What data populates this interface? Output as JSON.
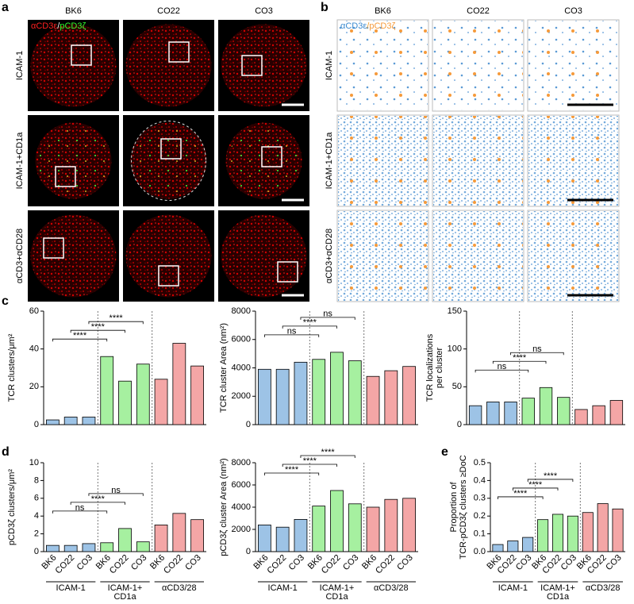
{
  "panel_labels": {
    "a": "a",
    "b": "b",
    "c": "c",
    "d": "d",
    "e": "e"
  },
  "panel_a": {
    "columns": [
      "BK6",
      "CO22",
      "CO3"
    ],
    "rows": [
      "ICAM-1",
      "ICAM-1+CD1a",
      "αCD3+αCD28"
    ],
    "legend": [
      "αCD3ε",
      "/",
      "pCD3ζ"
    ]
  },
  "panel_b": {
    "columns": [
      "BK6",
      "CO22",
      "CO3"
    ],
    "rows": [
      "ICAM-1",
      "ICAM-1+CD1a",
      "αCD3+αCD28"
    ],
    "legend": [
      "αCD3ε",
      "/",
      "pCD3ζ"
    ]
  },
  "chart_data": [
    {
      "type": "bar",
      "ylabel": [
        "TCR clusters/μm²"
      ],
      "values": [
        2.5,
        4,
        4,
        36,
        23,
        32,
        24,
        43,
        31
      ],
      "colors": [
        "#9dc3e6",
        "#9dc3e6",
        "#9dc3e6",
        "#a6f0a0",
        "#a6f0a0",
        "#a6f0a0",
        "#f4a6a6",
        "#f4a6a6",
        "#f4a6a6"
      ],
      "ylim": [
        0,
        60
      ],
      "yticks": [
        0,
        20,
        40,
        60
      ],
      "comparisons": [
        {
          "from": 0,
          "to": 3,
          "label": "****"
        },
        {
          "from": 1,
          "to": 4,
          "label": "****"
        },
        {
          "from": 2,
          "to": 5,
          "label": "****"
        }
      ]
    },
    {
      "type": "bar",
      "ylabel": [
        "TCR cluster Area (nm²)"
      ],
      "values": [
        3900,
        3900,
        4400,
        4600,
        5100,
        4500,
        3400,
        3800,
        4100
      ],
      "colors": [
        "#9dc3e6",
        "#9dc3e6",
        "#9dc3e6",
        "#a6f0a0",
        "#a6f0a0",
        "#a6f0a0",
        "#f4a6a6",
        "#f4a6a6",
        "#f4a6a6"
      ],
      "ylim": [
        0,
        8000
      ],
      "yticks": [
        0,
        2000,
        4000,
        6000,
        8000
      ],
      "comparisons": [
        {
          "from": 0,
          "to": 3,
          "label": "ns"
        },
        {
          "from": 1,
          "to": 4,
          "label": "****"
        },
        {
          "from": 2,
          "to": 5,
          "label": "ns"
        }
      ]
    },
    {
      "type": "bar",
      "ylabel": [
        "TCR localizations",
        "per cluster"
      ],
      "values": [
        25,
        30,
        30,
        35,
        49,
        36,
        20,
        25,
        32
      ],
      "colors": [
        "#9dc3e6",
        "#9dc3e6",
        "#9dc3e6",
        "#a6f0a0",
        "#a6f0a0",
        "#a6f0a0",
        "#f4a6a6",
        "#f4a6a6",
        "#f4a6a6"
      ],
      "ylim": [
        0,
        150
      ],
      "yticks": [
        0,
        50,
        100,
        150
      ],
      "comparisons": [
        {
          "from": 0,
          "to": 3,
          "label": "ns"
        },
        {
          "from": 1,
          "to": 4,
          "label": "****"
        },
        {
          "from": 2,
          "to": 5,
          "label": "ns"
        }
      ]
    },
    {
      "type": "bar",
      "ylabel": [
        "pCD3ζ clusters/μm²"
      ],
      "values": [
        0.7,
        0.7,
        0.9,
        1.0,
        2.6,
        1.1,
        3.0,
        4.3,
        3.6
      ],
      "categories": [
        "BK6",
        "CO22",
        "CO3",
        "BK6",
        "CO22",
        "CO3",
        "BK6",
        "CO22",
        "CO3"
      ],
      "group_labels": [
        [
          "ICAM-1"
        ],
        [
          "ICAM-1+",
          "CD1a"
        ],
        [
          "αCD3/28"
        ]
      ],
      "colors": [
        "#9dc3e6",
        "#9dc3e6",
        "#9dc3e6",
        "#a6f0a0",
        "#a6f0a0",
        "#a6f0a0",
        "#f4a6a6",
        "#f4a6a6",
        "#f4a6a6"
      ],
      "ylim": [
        0,
        10
      ],
      "yticks": [
        0,
        2,
        4,
        6,
        8,
        10
      ],
      "comparisons": [
        {
          "from": 0,
          "to": 3,
          "label": "ns"
        },
        {
          "from": 1,
          "to": 4,
          "label": "****"
        },
        {
          "from": 2,
          "to": 5,
          "label": "ns"
        }
      ]
    },
    {
      "type": "bar",
      "ylabel": [
        "pCD3ζ cluster Area (nm²)"
      ],
      "values": [
        2400,
        2200,
        2900,
        4100,
        5500,
        4300,
        4000,
        4700,
        4800
      ],
      "categories": [
        "BK6",
        "CO22",
        "CO3",
        "BK6",
        "CO22",
        "CO3",
        "BK6",
        "CO22",
        "CO3"
      ],
      "group_labels": [
        [
          "ICAM-1"
        ],
        [
          "ICAM-1+",
          "CD1a"
        ],
        [
          "αCD3/28"
        ]
      ],
      "colors": [
        "#9dc3e6",
        "#9dc3e6",
        "#9dc3e6",
        "#a6f0a0",
        "#a6f0a0",
        "#a6f0a0",
        "#f4a6a6",
        "#f4a6a6",
        "#f4a6a6"
      ],
      "ylim": [
        0,
        8000
      ],
      "yticks": [
        0,
        2000,
        4000,
        6000,
        8000
      ],
      "comparisons": [
        {
          "from": 0,
          "to": 3,
          "label": "****"
        },
        {
          "from": 1,
          "to": 4,
          "label": "****"
        },
        {
          "from": 2,
          "to": 5,
          "label": "****"
        }
      ]
    },
    {
      "type": "bar",
      "ylabel": [
        "Proportion of",
        "TCR-pCD3ζ clusters ≥DoC"
      ],
      "values": [
        0.04,
        0.06,
        0.08,
        0.18,
        0.21,
        0.2,
        0.22,
        0.27,
        0.24
      ],
      "categories": [
        "BK6",
        "CO22",
        "CO3",
        "BK6",
        "CO22",
        "CO3",
        "BK6",
        "CO22",
        "CO3"
      ],
      "group_labels": [
        [
          "ICAM-1"
        ],
        [
          "ICAM-1+",
          "CD1a"
        ],
        [
          "αCD3/28"
        ]
      ],
      "colors": [
        "#9dc3e6",
        "#9dc3e6",
        "#9dc3e6",
        "#a6f0a0",
        "#a6f0a0",
        "#a6f0a0",
        "#f4a6a6",
        "#f4a6a6",
        "#f4a6a6"
      ],
      "ylim": [
        0,
        0.5
      ],
      "yticks": [
        {
          "value": 0,
          "label": "0.0"
        },
        0.1,
        0.2,
        0.3,
        0.4,
        0.5
      ],
      "comparisons": [
        {
          "from": 0,
          "to": 3,
          "label": "****"
        },
        {
          "from": 1,
          "to": 4,
          "label": "****"
        },
        {
          "from": 2,
          "to": 5,
          "label": "****"
        }
      ]
    }
  ]
}
